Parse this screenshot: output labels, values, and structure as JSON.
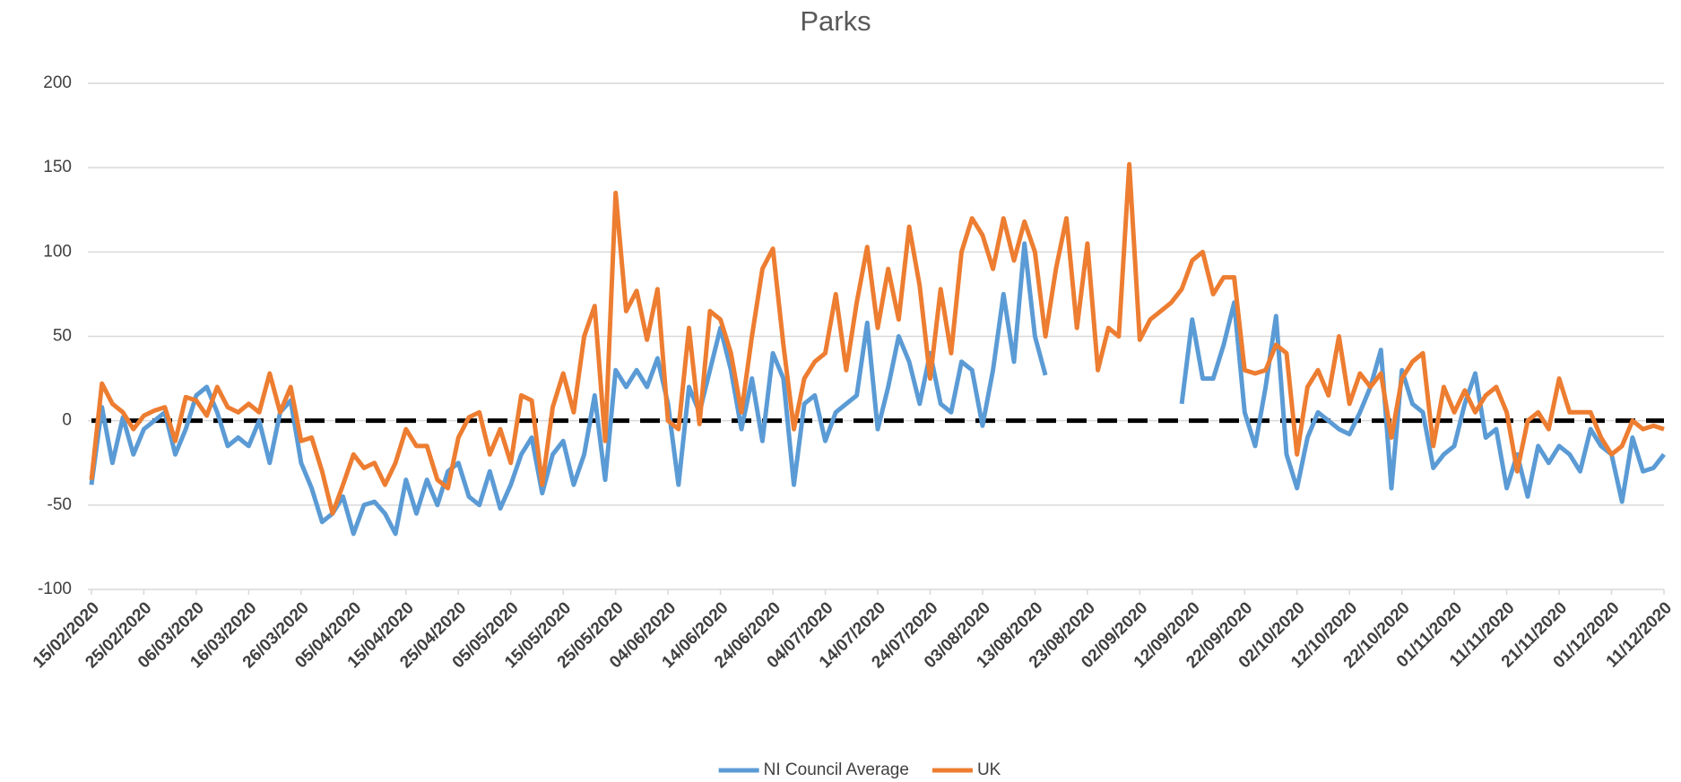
{
  "chart_data": {
    "type": "line",
    "title": "Parks",
    "x": [
      "15/02/2020",
      "17/02/2020",
      "19/02/2020",
      "21/02/2020",
      "23/02/2020",
      "25/02/2020",
      "27/02/2020",
      "29/02/2020",
      "02/03/2020",
      "04/03/2020",
      "06/03/2020",
      "08/03/2020",
      "10/03/2020",
      "12/03/2020",
      "14/03/2020",
      "16/03/2020",
      "18/03/2020",
      "20/03/2020",
      "22/03/2020",
      "24/03/2020",
      "26/03/2020",
      "28/03/2020",
      "30/03/2020",
      "01/04/2020",
      "03/04/2020",
      "05/04/2020",
      "07/04/2020",
      "09/04/2020",
      "11/04/2020",
      "13/04/2020",
      "15/04/2020",
      "17/04/2020",
      "19/04/2020",
      "21/04/2020",
      "23/04/2020",
      "25/04/2020",
      "27/04/2020",
      "29/04/2020",
      "01/05/2020",
      "03/05/2020",
      "05/05/2020",
      "07/05/2020",
      "09/05/2020",
      "11/05/2020",
      "13/05/2020",
      "15/05/2020",
      "17/05/2020",
      "19/05/2020",
      "21/05/2020",
      "23/05/2020",
      "25/05/2020",
      "27/05/2020",
      "29/05/2020",
      "31/05/2020",
      "02/06/2020",
      "04/06/2020",
      "06/06/2020",
      "08/06/2020",
      "10/06/2020",
      "12/06/2020",
      "14/06/2020",
      "16/06/2020",
      "18/06/2020",
      "20/06/2020",
      "22/06/2020",
      "24/06/2020",
      "26/06/2020",
      "28/06/2020",
      "30/06/2020",
      "02/07/2020",
      "04/07/2020",
      "06/07/2020",
      "08/07/2020",
      "10/07/2020",
      "12/07/2020",
      "14/07/2020",
      "16/07/2020",
      "18/07/2020",
      "20/07/2020",
      "22/07/2020",
      "24/07/2020",
      "26/07/2020",
      "28/07/2020",
      "30/07/2020",
      "01/08/2020",
      "03/08/2020",
      "05/08/2020",
      "07/08/2020",
      "09/08/2020",
      "11/08/2020",
      "13/08/2020",
      "15/08/2020",
      "17/08/2020",
      "19/08/2020",
      "21/08/2020",
      "23/08/2020",
      "25/08/2020",
      "27/08/2020",
      "29/08/2020",
      "31/08/2020",
      "02/09/2020",
      "04/09/2020",
      "06/09/2020",
      "08/09/2020",
      "10/09/2020",
      "12/09/2020",
      "14/09/2020",
      "16/09/2020",
      "18/09/2020",
      "20/09/2020",
      "22/09/2020",
      "24/09/2020",
      "26/09/2020",
      "28/09/2020",
      "30/09/2020",
      "02/10/2020",
      "04/10/2020",
      "06/10/2020",
      "08/10/2020",
      "10/10/2020",
      "12/10/2020",
      "14/10/2020",
      "16/10/2020",
      "18/10/2020",
      "20/10/2020",
      "22/10/2020",
      "24/10/2020",
      "26/10/2020",
      "28/10/2020",
      "30/10/2020",
      "01/11/2020",
      "03/11/2020",
      "05/11/2020",
      "07/11/2020",
      "09/11/2020",
      "11/11/2020",
      "13/11/2020",
      "15/11/2020",
      "17/11/2020",
      "19/11/2020",
      "21/11/2020",
      "23/11/2020",
      "25/11/2020",
      "27/11/2020",
      "29/11/2020",
      "01/12/2020",
      "03/12/2020",
      "05/12/2020",
      "07/12/2020",
      "09/12/2020",
      "11/12/2020"
    ],
    "series": [
      {
        "name": "NI Council Average",
        "color": "#5b9bd5",
        "values": [
          -38,
          8,
          -25,
          2,
          -20,
          -5,
          0,
          5,
          -20,
          -5,
          15,
          20,
          5,
          -15,
          -10,
          -15,
          0,
          -25,
          5,
          12,
          -25,
          -40,
          -60,
          -55,
          -45,
          -67,
          -50,
          -48,
          -55,
          -67,
          -35,
          -55,
          -35,
          -50,
          -30,
          -25,
          -45,
          -50,
          -30,
          -52,
          -38,
          -20,
          -10,
          -43,
          -20,
          -12,
          -38,
          -20,
          15,
          -35,
          30,
          20,
          30,
          20,
          37,
          10,
          -38,
          20,
          5,
          30,
          55,
          30,
          -5,
          25,
          -12,
          40,
          25,
          -38,
          10,
          15,
          -12,
          5,
          10,
          15,
          58,
          -5,
          20,
          50,
          35,
          10,
          40,
          10,
          5,
          35,
          30,
          -3,
          30,
          75,
          35,
          105,
          50,
          27,
          null,
          null,
          null,
          null,
          null,
          null,
          null,
          null,
          null,
          null,
          null,
          null,
          10,
          60,
          25,
          25,
          45,
          70,
          5,
          -15,
          20,
          62,
          -20,
          -40,
          -10,
          5,
          0,
          -5,
          -8,
          5,
          20,
          42,
          -40,
          30,
          10,
          5,
          -28,
          -20,
          -15,
          10,
          28,
          -10,
          -5,
          -40,
          -20,
          -45,
          -15,
          -25,
          -15,
          -20,
          -30,
          -5,
          -15,
          -20,
          -48,
          -10,
          -30,
          -28,
          -20
        ]
      },
      {
        "name": "UK",
        "color": "#ed7d31",
        "values": [
          -35,
          22,
          10,
          5,
          -5,
          3,
          6,
          8,
          -12,
          14,
          12,
          3,
          20,
          8,
          5,
          10,
          5,
          28,
          5,
          20,
          -12,
          -10,
          -30,
          -55,
          -38,
          -20,
          -28,
          -25,
          -38,
          -25,
          -5,
          -15,
          -15,
          -35,
          -40,
          -10,
          2,
          5,
          -20,
          -5,
          -25,
          15,
          12,
          -38,
          8,
          28,
          5,
          50,
          68,
          -12,
          135,
          65,
          77,
          48,
          78,
          0,
          -5,
          55,
          -2,
          65,
          60,
          40,
          5,
          50,
          90,
          102,
          45,
          -5,
          25,
          35,
          40,
          75,
          30,
          70,
          103,
          55,
          90,
          60,
          115,
          80,
          25,
          78,
          40,
          100,
          120,
          110,
          90,
          120,
          95,
          118,
          100,
          50,
          90,
          120,
          55,
          105,
          30,
          55,
          50,
          152,
          48,
          60,
          65,
          70,
          78,
          95,
          100,
          75,
          85,
          85,
          30,
          28,
          30,
          45,
          40,
          -20,
          20,
          30,
          15,
          50,
          10,
          28,
          20,
          28,
          -10,
          25,
          35,
          40,
          -15,
          20,
          5,
          18,
          5,
          15,
          20,
          5,
          -30,
          0,
          5,
          -5,
          25,
          5,
          5,
          5,
          -10,
          -20,
          -15,
          0,
          -5,
          -3,
          -5
        ]
      }
    ],
    "xlim": [
      "15/02/2020",
      "11/12/2020"
    ],
    "xticks": [
      "15/02/2020",
      "25/02/2020",
      "06/03/2020",
      "16/03/2020",
      "26/03/2020",
      "05/04/2020",
      "15/04/2020",
      "25/04/2020",
      "05/05/2020",
      "15/05/2020",
      "25/05/2020",
      "04/06/2020",
      "14/06/2020",
      "24/06/2020",
      "04/07/2020",
      "14/07/2020",
      "24/07/2020",
      "03/08/2020",
      "13/08/2020",
      "23/08/2020",
      "02/09/2020",
      "12/09/2020",
      "22/09/2020",
      "02/10/2020",
      "12/10/2020",
      "22/10/2020",
      "01/11/2020",
      "11/11/2020",
      "21/11/2020",
      "01/12/2020",
      "11/12/2020"
    ],
    "ylim": [
      -100,
      200
    ],
    "yticks": [
      -100,
      -50,
      0,
      50,
      100,
      150,
      200
    ],
    "grid": true,
    "zero_line": true,
    "legend": "bottom"
  }
}
